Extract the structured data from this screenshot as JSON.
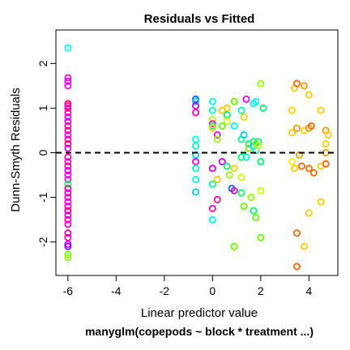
{
  "chart_data": {
    "type": "scatter",
    "title": "Residuals vs Fitted",
    "xlabel": "Linear predictor value",
    "ylabel": "Dunn-Smyth Residuals",
    "subtitle": "manyglm(copepods ~ block * treatment ...)",
    "xlim": [
      -6.5,
      5.2
    ],
    "ylim": [
      -2.75,
      2.75
    ],
    "xticks": [
      -6,
      -4,
      -2,
      0,
      2,
      4
    ],
    "yticks": [
      -2,
      -1,
      0,
      1,
      2
    ],
    "reference_line": {
      "y": 0,
      "style": "dashed"
    },
    "marker": "open-circle",
    "grid": false,
    "legend": "none",
    "points": [
      {
        "x": -6.0,
        "y": 2.35,
        "color": "#00ffff"
      },
      {
        "x": -6.0,
        "y": 1.68,
        "color": "#ff00cc"
      },
      {
        "x": -6.0,
        "y": 1.6,
        "color": "#cc00ff"
      },
      {
        "x": -6.0,
        "y": 1.5,
        "color": "#ff00ff"
      },
      {
        "x": -6.0,
        "y": 1.1,
        "color": "#ff0066"
      },
      {
        "x": -6.0,
        "y": 1.05,
        "color": "#ff00aa"
      },
      {
        "x": -6.0,
        "y": 1.0,
        "color": "#ff00cc"
      },
      {
        "x": -6.0,
        "y": 0.9,
        "color": "#ff0088"
      },
      {
        "x": -6.0,
        "y": 0.8,
        "color": "#ff00ff"
      },
      {
        "x": -6.0,
        "y": 0.7,
        "color": "#cc00ff"
      },
      {
        "x": -6.0,
        "y": 0.6,
        "color": "#ff00aa"
      },
      {
        "x": -6.0,
        "y": 0.5,
        "color": "#ff0088"
      },
      {
        "x": -6.0,
        "y": 0.4,
        "color": "#ff00ff"
      },
      {
        "x": -6.0,
        "y": 0.3,
        "color": "#ff00cc"
      },
      {
        "x": -6.0,
        "y": 0.2,
        "color": "#ff0066"
      },
      {
        "x": -6.0,
        "y": 0.1,
        "color": "#cc00ff"
      },
      {
        "x": -6.0,
        "y": -0.1,
        "color": "#ff00aa"
      },
      {
        "x": -6.0,
        "y": -0.2,
        "color": "#ff00ff"
      },
      {
        "x": -6.0,
        "y": -0.3,
        "color": "#ff0088"
      },
      {
        "x": -6.0,
        "y": -0.4,
        "color": "#cc00ff"
      },
      {
        "x": -6.0,
        "y": -0.5,
        "color": "#ff00cc"
      },
      {
        "x": -6.0,
        "y": -0.6,
        "color": "#ff00ff"
      },
      {
        "x": -6.0,
        "y": -0.7,
        "color": "#00ff66"
      },
      {
        "x": -6.0,
        "y": -0.8,
        "color": "#ff0088"
      },
      {
        "x": -6.0,
        "y": -0.9,
        "color": "#cc00ff"
      },
      {
        "x": -6.0,
        "y": -1.0,
        "color": "#ff00aa"
      },
      {
        "x": -6.0,
        "y": -1.1,
        "color": "#ff00ff"
      },
      {
        "x": -6.0,
        "y": -1.2,
        "color": "#ff00cc"
      },
      {
        "x": -6.0,
        "y": -1.3,
        "color": "#ff0066"
      },
      {
        "x": -6.0,
        "y": -1.4,
        "color": "#cc00ff"
      },
      {
        "x": -6.0,
        "y": -1.5,
        "color": "#ff00aa"
      },
      {
        "x": -6.0,
        "y": -1.6,
        "color": "#ff00ff"
      },
      {
        "x": -6.0,
        "y": -1.8,
        "color": "#ff0088"
      },
      {
        "x": -6.0,
        "y": -1.9,
        "color": "#ff00cc"
      },
      {
        "x": -6.0,
        "y": -2.05,
        "color": "#cc00ff"
      },
      {
        "x": -6.0,
        "y": -2.1,
        "color": "#8800ff"
      },
      {
        "x": -6.0,
        "y": -2.28,
        "color": "#66ff00"
      },
      {
        "x": -6.0,
        "y": -2.35,
        "color": "#99ff00"
      },
      {
        "x": -0.7,
        "y": 1.2,
        "color": "#0066ff"
      },
      {
        "x": -0.7,
        "y": 1.15,
        "color": "#00ccff"
      },
      {
        "x": -0.7,
        "y": 1.05,
        "color": "#cc00ff"
      },
      {
        "x": -0.7,
        "y": 0.9,
        "color": "#ff00cc"
      },
      {
        "x": -0.7,
        "y": 0.3,
        "color": "#00ffff"
      },
      {
        "x": -0.7,
        "y": 0.15,
        "color": "#00ffcc"
      },
      {
        "x": -0.7,
        "y": -0.05,
        "color": "#00ccff"
      },
      {
        "x": -0.7,
        "y": -0.2,
        "color": "#ff00ff"
      },
      {
        "x": -0.7,
        "y": -0.35,
        "color": "#00ffcc"
      },
      {
        "x": -0.7,
        "y": -0.6,
        "color": "#00ffff"
      },
      {
        "x": -0.7,
        "y": -0.88,
        "color": "#00ccff"
      },
      {
        "x": 0.0,
        "y": 1.15,
        "color": "#00ffff"
      },
      {
        "x": 0.0,
        "y": 0.95,
        "color": "#00ffcc"
      },
      {
        "x": 0.0,
        "y": 0.75,
        "color": "#ccff00"
      },
      {
        "x": 0.0,
        "y": 0.65,
        "color": "#ff00ff"
      },
      {
        "x": 0.0,
        "y": 0.6,
        "color": "#00ff66"
      },
      {
        "x": 0.0,
        "y": 0.55,
        "color": "#ffcc00"
      },
      {
        "x": 0.0,
        "y": -0.35,
        "color": "#cc00ff"
      },
      {
        "x": 0.0,
        "y": -0.7,
        "color": "#00ff99"
      },
      {
        "x": 0.0,
        "y": -1.25,
        "color": "#ff00cc"
      },
      {
        "x": 0.0,
        "y": -1.5,
        "color": "#00ffff"
      },
      {
        "x": 0.2,
        "y": 0.4,
        "color": "#ff00ff"
      },
      {
        "x": 0.2,
        "y": 0.3,
        "color": "#99ff00"
      },
      {
        "x": 0.2,
        "y": -0.6,
        "color": "#ffcc00"
      },
      {
        "x": 0.2,
        "y": -1.05,
        "color": "#ff00aa"
      },
      {
        "x": 0.4,
        "y": 0.95,
        "color": "#ffcc00"
      },
      {
        "x": 0.4,
        "y": 0.6,
        "color": "#66ff00"
      },
      {
        "x": 0.4,
        "y": -0.2,
        "color": "#cc00ff"
      },
      {
        "x": 0.6,
        "y": 1.0,
        "color": "#ffcc00"
      },
      {
        "x": 0.6,
        "y": 0.85,
        "color": "#00ff66"
      },
      {
        "x": 0.6,
        "y": 0.7,
        "color": "#ccff00"
      },
      {
        "x": 0.6,
        "y": -0.3,
        "color": "#00ff66"
      },
      {
        "x": 0.7,
        "y": -0.5,
        "color": "#99ff00"
      },
      {
        "x": 0.8,
        "y": -0.8,
        "color": "#0066ff"
      },
      {
        "x": 0.9,
        "y": 1.15,
        "color": "#66ff00"
      },
      {
        "x": 0.9,
        "y": 0.6,
        "color": "#00ffff"
      },
      {
        "x": 0.9,
        "y": -0.35,
        "color": "#ffcc00"
      },
      {
        "x": 0.9,
        "y": -0.85,
        "color": "#ff00cc"
      },
      {
        "x": 0.9,
        "y": -2.1,
        "color": "#66ff00"
      },
      {
        "x": 1.2,
        "y": 0.95,
        "color": "#00ffcc"
      },
      {
        "x": 1.2,
        "y": 0.3,
        "color": "#00ff99"
      },
      {
        "x": 1.2,
        "y": -0.1,
        "color": "#00ff66"
      },
      {
        "x": 1.2,
        "y": -0.55,
        "color": "#ccff00"
      },
      {
        "x": 1.2,
        "y": -0.9,
        "color": "#00ff66"
      },
      {
        "x": 1.3,
        "y": 0.8,
        "color": "#ffcc00"
      },
      {
        "x": 1.3,
        "y": 0.4,
        "color": "#00ccff"
      },
      {
        "x": 1.3,
        "y": -1.2,
        "color": "#66ff00"
      },
      {
        "x": 1.4,
        "y": 1.2,
        "color": "#ff00ff"
      },
      {
        "x": 1.4,
        "y": -0.1,
        "color": "#00ffcc"
      },
      {
        "x": 1.5,
        "y": 0.2,
        "color": "#00ff66"
      },
      {
        "x": 1.5,
        "y": 0.1,
        "color": "#66ff00"
      },
      {
        "x": 1.6,
        "y": -1.0,
        "color": "#99ff00"
      },
      {
        "x": 1.7,
        "y": 1.1,
        "color": "#00ffcc"
      },
      {
        "x": 1.7,
        "y": 0.25,
        "color": "#00ff99"
      },
      {
        "x": 1.7,
        "y": 0.15,
        "color": "#00ccff"
      },
      {
        "x": 1.7,
        "y": -1.3,
        "color": "#00ff66"
      },
      {
        "x": 1.8,
        "y": 1.15,
        "color": "#00ffff"
      },
      {
        "x": 1.8,
        "y": 0.2,
        "color": "#99ff00"
      },
      {
        "x": 1.8,
        "y": 0.05,
        "color": "#00ffcc"
      },
      {
        "x": 1.8,
        "y": -1.45,
        "color": "#66ff00"
      },
      {
        "x": 1.9,
        "y": 0.25,
        "color": "#00ff66"
      },
      {
        "x": 1.9,
        "y": 0.15,
        "color": "#ccff00"
      },
      {
        "x": 2.0,
        "y": 1.55,
        "color": "#99ff00"
      },
      {
        "x": 2.0,
        "y": -0.2,
        "color": "#00ff66"
      },
      {
        "x": 2.0,
        "y": -0.85,
        "color": "#ccff00"
      },
      {
        "x": 2.0,
        "y": -1.9,
        "color": "#66ff00"
      },
      {
        "x": 2.1,
        "y": 1.0,
        "color": "#00ff66"
      },
      {
        "x": 3.3,
        "y": 0.95,
        "color": "#ffcc00"
      },
      {
        "x": 3.3,
        "y": 0.45,
        "color": "#ffcc00"
      },
      {
        "x": 3.3,
        "y": -0.2,
        "color": "#ffee00"
      },
      {
        "x": 3.4,
        "y": 1.45,
        "color": "#ffcc00"
      },
      {
        "x": 3.4,
        "y": -0.35,
        "color": "#ffcc00"
      },
      {
        "x": 3.5,
        "y": 1.55,
        "color": "#ff6600"
      },
      {
        "x": 3.5,
        "y": 0.55,
        "color": "#ff9900"
      },
      {
        "x": 3.5,
        "y": -1.8,
        "color": "#ff6600"
      },
      {
        "x": 3.5,
        "y": -2.55,
        "color": "#ff6600"
      },
      {
        "x": 3.6,
        "y": -0.05,
        "color": "#ff9900"
      },
      {
        "x": 3.7,
        "y": -0.3,
        "color": "#ff6600"
      },
      {
        "x": 3.8,
        "y": 1.5,
        "color": "#ff9900"
      },
      {
        "x": 3.8,
        "y": 0.5,
        "color": "#ffcc00"
      },
      {
        "x": 3.8,
        "y": -2.1,
        "color": "#ffcc00"
      },
      {
        "x": 4.0,
        "y": 1.3,
        "color": "#ffcc00"
      },
      {
        "x": 4.0,
        "y": 0.55,
        "color": "#ff9900"
      },
      {
        "x": 4.0,
        "y": -0.35,
        "color": "#ff6600"
      },
      {
        "x": 4.0,
        "y": -1.35,
        "color": "#ffcc00"
      },
      {
        "x": 4.1,
        "y": 0.6,
        "color": "#ff6600"
      },
      {
        "x": 4.2,
        "y": -0.45,
        "color": "#ff6600"
      },
      {
        "x": 4.5,
        "y": 0.95,
        "color": "#ffcc00"
      },
      {
        "x": 4.5,
        "y": -0.3,
        "color": "#ffcc00"
      },
      {
        "x": 4.5,
        "y": -1.1,
        "color": "#ffcc00"
      },
      {
        "x": 4.7,
        "y": 0.5,
        "color": "#ff9900"
      },
      {
        "x": 4.7,
        "y": 0.2,
        "color": "#ffcc00"
      },
      {
        "x": 4.7,
        "y": 0.0,
        "color": "#ff9900"
      },
      {
        "x": 4.7,
        "y": -0.25,
        "color": "#ff6600"
      },
      {
        "x": 4.8,
        "y": 0.4,
        "color": "#ffcc00"
      }
    ]
  }
}
